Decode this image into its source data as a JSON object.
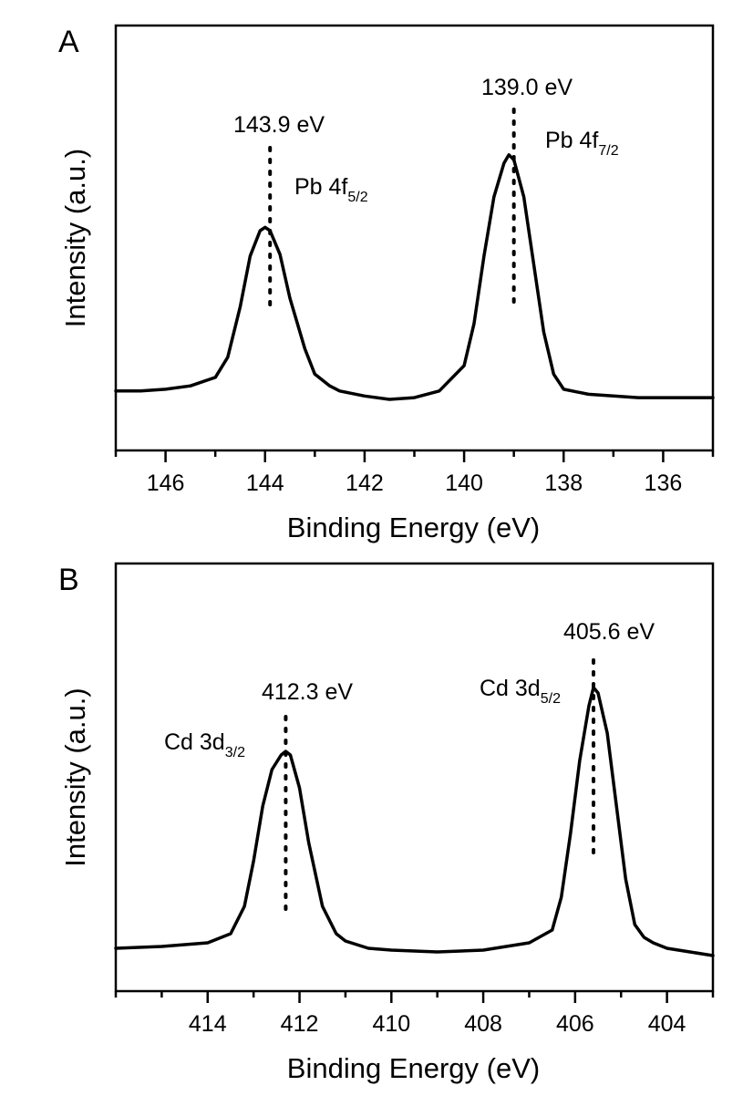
{
  "chart_data": [
    {
      "panel_label": "A",
      "type": "line",
      "xlabel": "Binding Energy (eV)",
      "ylabel": "Intensity (a.u.)",
      "xlim": [
        147,
        135
      ],
      "x_reversed": true,
      "xticks_major": [
        146,
        144,
        142,
        140,
        138,
        136
      ],
      "xtick_labels": [
        "146",
        "144",
        "142",
        "140",
        "138",
        "136"
      ],
      "yticks": "none",
      "grid": false,
      "series": [
        {
          "x": [
            147.0,
            146.5,
            146.0,
            145.5,
            145.0,
            144.75,
            144.5,
            144.3,
            144.1,
            144.0,
            143.9,
            143.7,
            143.5,
            143.2,
            143.0,
            142.7,
            142.5,
            142.0,
            141.5,
            141.0,
            140.5,
            140.0,
            139.8,
            139.6,
            139.4,
            139.2,
            139.1,
            139.0,
            138.8,
            138.6,
            138.4,
            138.2,
            138.0,
            137.5,
            137.0,
            136.5,
            136.0,
            135.5,
            135.0
          ],
          "y": [
            0.05,
            0.05,
            0.06,
            0.08,
            0.13,
            0.25,
            0.55,
            0.85,
            1.0,
            1.02,
            1.0,
            0.86,
            0.6,
            0.3,
            0.15,
            0.08,
            0.05,
            0.02,
            0.0,
            0.01,
            0.05,
            0.2,
            0.45,
            0.85,
            1.2,
            1.4,
            1.45,
            1.42,
            1.2,
            0.8,
            0.4,
            0.15,
            0.06,
            0.03,
            0.02,
            0.01,
            0.01,
            0.01,
            0.01
          ]
        }
      ],
      "peaks": [
        {
          "x": 143.9,
          "label": "143.9 eV",
          "name_base": "Pb 4f",
          "name_sub": "5/2"
        },
        {
          "x": 139.0,
          "label": "139.0 eV",
          "name_base": "Pb 4f",
          "name_sub": "7/2"
        }
      ]
    },
    {
      "panel_label": "B",
      "type": "line",
      "xlabel": "Binding Energy (eV)",
      "ylabel": "Intensity (a.u.)",
      "xlim": [
        416,
        403
      ],
      "x_reversed": true,
      "xticks_major": [
        414,
        412,
        410,
        408,
        406,
        404
      ],
      "xtick_labels": [
        "414",
        "412",
        "410",
        "408",
        "406",
        "404"
      ],
      "yticks": "none",
      "grid": false,
      "series": [
        {
          "x": [
            416.0,
            415.0,
            414.0,
            413.5,
            413.2,
            413.0,
            412.8,
            412.6,
            412.4,
            412.3,
            412.2,
            412.0,
            411.8,
            411.5,
            411.2,
            411.0,
            410.5,
            410.0,
            409.0,
            408.0,
            407.0,
            406.5,
            406.3,
            406.1,
            405.9,
            405.7,
            405.6,
            405.5,
            405.3,
            405.1,
            404.9,
            404.7,
            404.5,
            404.3,
            404.0,
            403.5,
            403.0
          ],
          "y": [
            0.02,
            0.03,
            0.05,
            0.1,
            0.25,
            0.5,
            0.8,
            1.0,
            1.08,
            1.1,
            1.08,
            0.9,
            0.6,
            0.25,
            0.1,
            0.06,
            0.02,
            0.01,
            0.0,
            0.01,
            0.05,
            0.12,
            0.3,
            0.65,
            1.05,
            1.35,
            1.45,
            1.42,
            1.2,
            0.8,
            0.4,
            0.15,
            0.08,
            0.05,
            0.02,
            0.0,
            -0.02
          ]
        }
      ],
      "peaks": [
        {
          "x": 412.3,
          "label": "412.3 eV",
          "name_base": "Cd 3d",
          "name_sub": "3/2"
        },
        {
          "x": 405.6,
          "label": "405.6 eV",
          "name_base": "Cd 3d",
          "name_sub": "5/2"
        }
      ]
    }
  ]
}
